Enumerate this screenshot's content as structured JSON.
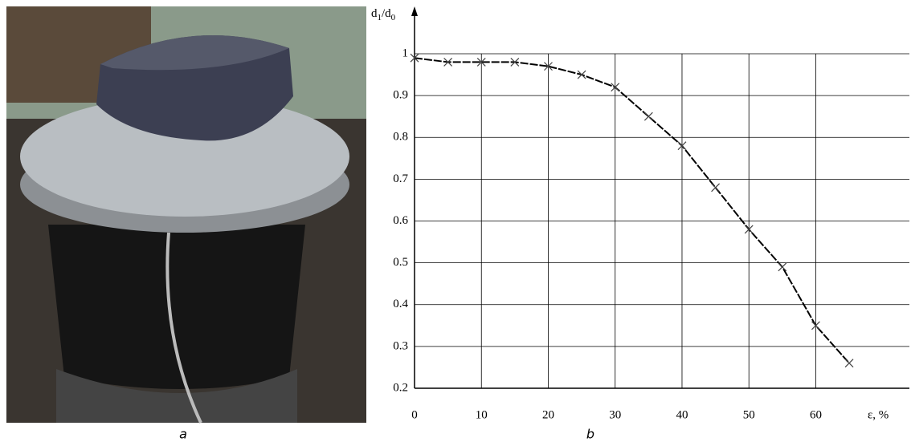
{
  "chart_data": {
    "type": "line",
    "ylabel": [
      "d",
      "1",
      "/d",
      "0"
    ],
    "xlabel": "ε, %",
    "panel_labels": [
      "a",
      "b"
    ],
    "x": [
      0,
      5,
      10,
      15,
      20,
      25,
      30,
      35,
      40,
      45,
      50,
      55,
      60,
      65
    ],
    "series": [
      {
        "color": "#000000",
        "values": [
          0.99,
          0.98,
          0.98,
          0.98,
          0.97,
          0.95,
          0.92,
          0.85,
          0.78,
          0.68,
          0.58,
          0.49,
          0.35,
          0.26
        ]
      }
    ],
    "xlim": [
      0,
      74
    ],
    "ylim": [
      0.2,
      1.0
    ],
    "xticks": [
      0,
      10,
      20,
      30,
      40,
      50,
      60
    ],
    "yticks": [
      0.2,
      0.3,
      0.4,
      0.5,
      0.6,
      0.7,
      0.8,
      0.9,
      1
    ],
    "grid": true
  }
}
